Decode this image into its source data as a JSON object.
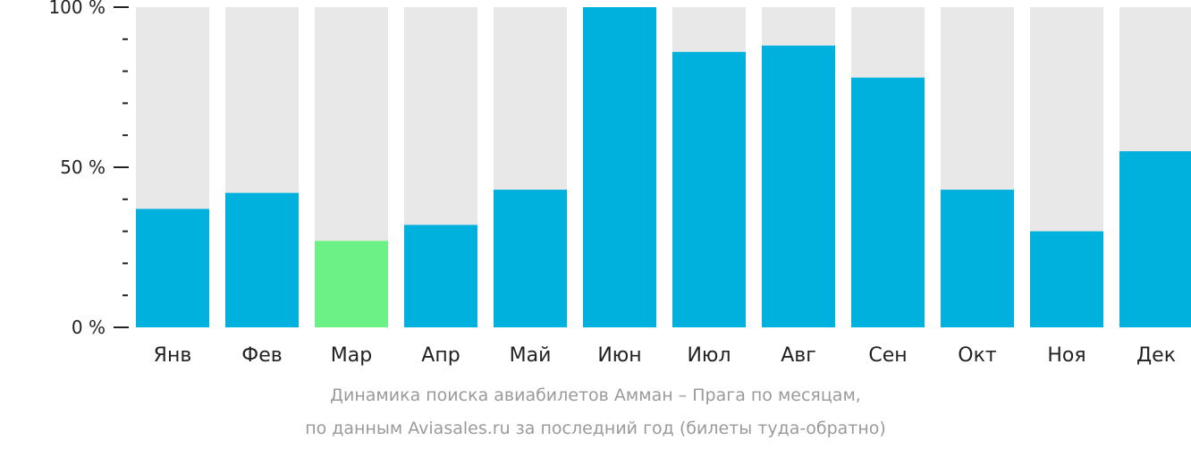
{
  "chart_data": {
    "type": "bar",
    "categories": [
      "Янв",
      "Фев",
      "Мар",
      "Апр",
      "Май",
      "Июн",
      "Июл",
      "Авг",
      "Сен",
      "Окт",
      "Ноя",
      "Дек"
    ],
    "values": [
      37,
      42,
      27,
      32,
      43,
      100,
      86,
      88,
      78,
      43,
      30,
      55
    ],
    "ylim": [
      0,
      100
    ],
    "yticks": [
      "0 %",
      "50 %",
      "100 %"
    ],
    "highlight_index": 2,
    "colors": {
      "bar": "#00b0dd",
      "highlight": "#6cf186",
      "background_bar": "#e8e8e8",
      "axis": "#222222"
    },
    "caption": [
      "Динамика поиска авиабилетов Амман – Прага по месяцам,",
      "по данным Aviasales.ru за последний год (билеты туда-обратно)"
    ],
    "grid": false,
    "legend": "none"
  }
}
